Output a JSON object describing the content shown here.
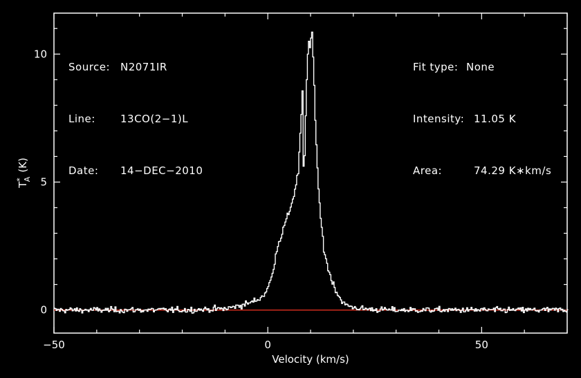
{
  "info_left": [
    {
      "label": "Source:",
      "value": "N2071IR"
    },
    {
      "label": "Line:",
      "value": "13CO(2−1)L"
    },
    {
      "label": "Date:",
      "value": "14−DEC−2010"
    }
  ],
  "info_right": [
    {
      "label": "Fit type:",
      "value": "None"
    },
    {
      "label": "Intensity:",
      "value": "11.05 K"
    },
    {
      "label": "Area:",
      "value": "74.29 K∗km/s"
    }
  ],
  "chart_data": {
    "type": "line",
    "title": "",
    "xlabel": "Velocity (km/s)",
    "ylabel_main": "T",
    "ylabel_sup": "*",
    "ylabel_sub": "A",
    "ylabel_unit": "(K)",
    "xlim": [
      -50,
      70
    ],
    "ylim": [
      -0.9,
      11.6
    ],
    "xticks": [
      -50,
      0,
      50
    ],
    "xtick_labels": [
      "−50",
      "0",
      "50"
    ],
    "yticks": [
      0,
      5,
      10
    ],
    "ytick_labels": [
      "0",
      "5",
      "10"
    ],
    "grid": false,
    "series": [
      {
        "color": "#ffffff",
        "x": [
          -50,
          -20,
          -10,
          -6,
          -4,
          -2,
          -1,
          0,
          1,
          2,
          3,
          4,
          5,
          6,
          7,
          7.5,
          8,
          8.3,
          8.7,
          9.0,
          9.4,
          9.8,
          10.2,
          10.6,
          11.0,
          11.5,
          12,
          13,
          14,
          15,
          16,
          17,
          18,
          20,
          22,
          25,
          30,
          40,
          70
        ],
        "y": [
          0.0,
          0.0,
          0.05,
          0.2,
          0.3,
          0.45,
          0.6,
          0.9,
          1.4,
          2.4,
          2.9,
          3.4,
          3.9,
          4.5,
          5.4,
          6.8,
          8.5,
          4.9,
          7.2,
          9.0,
          10.6,
          10.2,
          11.05,
          9.5,
          7.5,
          5.5,
          4.0,
          2.4,
          1.6,
          1.1,
          0.7,
          0.4,
          0.2,
          0.1,
          0.05,
          0.02,
          0.0,
          0.0,
          0.0
        ],
        "noise_rms": 0.08
      },
      {
        "color": "#e03020",
        "x": [
          -50,
          70
        ],
        "y": [
          0,
          0
        ]
      }
    ]
  }
}
